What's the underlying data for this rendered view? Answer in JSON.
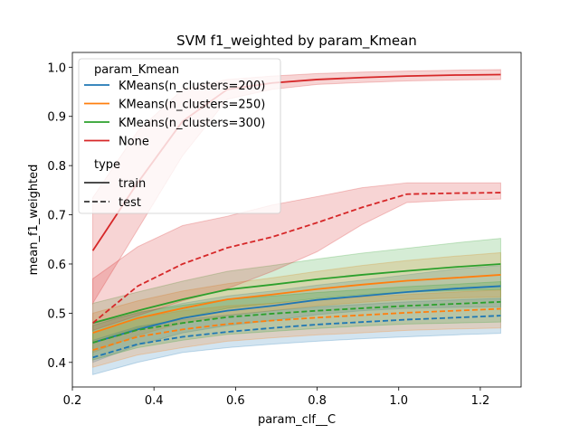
{
  "chart_data": {
    "type": "line",
    "title": "SVM f1_weighted by param_Kmean",
    "xlabel": "param_clf__C",
    "ylabel": "mean_f1_weighted",
    "xlim": [
      0.2,
      1.3
    ],
    "ylim": [
      0.35,
      1.03
    ],
    "xticks": [
      "0.2",
      "0.4",
      "0.6",
      "0.8",
      "1.0",
      "1.2"
    ],
    "yticks": [
      "0.4",
      "0.5",
      "0.6",
      "0.7",
      "0.8",
      "0.9",
      "1.0"
    ],
    "grid": false,
    "legend": {
      "placement": "top-left",
      "hue_title": "param_Kmean",
      "style_title": "type",
      "hue_entries": [
        {
          "label": "KMeans(n_clusters=200)",
          "color": "#1f77b4"
        },
        {
          "label": "KMeans(n_clusters=250)",
          "color": "#ff7f0e"
        },
        {
          "label": "KMeans(n_clusters=300)",
          "color": "#2ca02c"
        },
        {
          "label": "None",
          "color": "#d62728"
        }
      ],
      "style_entries": [
        {
          "label": "train",
          "dash": "solid"
        },
        {
          "label": "test",
          "dash": "dashed"
        }
      ]
    },
    "x": [
      0.25,
      0.36,
      0.47,
      0.58,
      0.69,
      0.8,
      0.91,
      1.02,
      1.14,
      1.25
    ],
    "series": [
      {
        "name": "KMeans(n_clusters=200)",
        "type": "train",
        "color": "#1f77b4",
        "values": [
          0.44,
          0.467,
          0.49,
          0.505,
          0.515,
          0.527,
          0.535,
          0.543,
          0.55,
          0.555
        ],
        "lower": [
          0.4,
          0.435,
          0.46,
          0.475,
          0.485,
          0.497,
          0.505,
          0.51,
          0.512,
          0.513
        ],
        "upper": [
          0.48,
          0.5,
          0.52,
          0.535,
          0.545,
          0.557,
          0.567,
          0.578,
          0.59,
          0.597
        ]
      },
      {
        "name": "KMeans(n_clusters=250)",
        "type": "train",
        "color": "#ff7f0e",
        "values": [
          0.46,
          0.49,
          0.51,
          0.528,
          0.538,
          0.549,
          0.558,
          0.566,
          0.572,
          0.578
        ],
        "lower": [
          0.42,
          0.455,
          0.48,
          0.495,
          0.505,
          0.515,
          0.522,
          0.528,
          0.531,
          0.533
        ],
        "upper": [
          0.5,
          0.525,
          0.545,
          0.56,
          0.572,
          0.585,
          0.597,
          0.607,
          0.616,
          0.623
        ]
      },
      {
        "name": "KMeans(n_clusters=300)",
        "type": "train",
        "color": "#2ca02c",
        "values": [
          0.48,
          0.505,
          0.528,
          0.548,
          0.558,
          0.569,
          0.578,
          0.586,
          0.594,
          0.6
        ],
        "lower": [
          0.44,
          0.47,
          0.49,
          0.51,
          0.52,
          0.53,
          0.538,
          0.543,
          0.546,
          0.548
        ],
        "upper": [
          0.52,
          0.543,
          0.565,
          0.585,
          0.597,
          0.61,
          0.622,
          0.632,
          0.643,
          0.652
        ]
      },
      {
        "name": "None",
        "type": "train",
        "color": "#d62728",
        "values": [
          0.627,
          0.765,
          0.89,
          0.955,
          0.968,
          0.975,
          0.979,
          0.982,
          0.984,
          0.985
        ],
        "lower": [
          0.52,
          0.67,
          0.82,
          0.935,
          0.955,
          0.965,
          0.969,
          0.972,
          0.974,
          0.975
        ],
        "upper": [
          0.735,
          0.87,
          0.955,
          0.975,
          0.982,
          0.987,
          0.99,
          0.992,
          0.994,
          0.995
        ]
      },
      {
        "name": "KMeans(n_clusters=200)",
        "type": "test",
        "color": "#1f77b4",
        "values": [
          0.41,
          0.437,
          0.452,
          0.462,
          0.47,
          0.477,
          0.482,
          0.487,
          0.491,
          0.495
        ],
        "lower": [
          0.375,
          0.4,
          0.42,
          0.43,
          0.437,
          0.443,
          0.448,
          0.452,
          0.456,
          0.459
        ],
        "upper": [
          0.445,
          0.473,
          0.487,
          0.496,
          0.505,
          0.513,
          0.518,
          0.523,
          0.527,
          0.53
        ]
      },
      {
        "name": "KMeans(n_clusters=250)",
        "type": "test",
        "color": "#ff7f0e",
        "values": [
          0.425,
          0.452,
          0.467,
          0.478,
          0.485,
          0.491,
          0.496,
          0.501,
          0.505,
          0.509
        ],
        "lower": [
          0.39,
          0.415,
          0.43,
          0.443,
          0.45,
          0.456,
          0.46,
          0.465,
          0.468,
          0.47
        ],
        "upper": [
          0.46,
          0.49,
          0.505,
          0.515,
          0.52,
          0.527,
          0.533,
          0.538,
          0.543,
          0.547
        ]
      },
      {
        "name": "KMeans(n_clusters=300)",
        "type": "test",
        "color": "#2ca02c",
        "values": [
          0.44,
          0.466,
          0.48,
          0.492,
          0.499,
          0.505,
          0.51,
          0.515,
          0.519,
          0.523
        ],
        "lower": [
          0.405,
          0.43,
          0.445,
          0.457,
          0.463,
          0.469,
          0.474,
          0.478,
          0.48,
          0.482
        ],
        "upper": [
          0.475,
          0.502,
          0.516,
          0.528,
          0.535,
          0.542,
          0.548,
          0.554,
          0.559,
          0.564
        ]
      },
      {
        "name": "None",
        "type": "test",
        "color": "#d62728",
        "values": [
          0.48,
          0.555,
          0.6,
          0.633,
          0.655,
          0.684,
          0.715,
          0.742,
          0.744,
          0.745
        ],
        "lower": [
          0.465,
          0.495,
          0.525,
          0.55,
          0.585,
          0.625,
          0.68,
          0.725,
          0.73,
          0.732
        ],
        "upper": [
          0.57,
          0.635,
          0.678,
          0.697,
          0.72,
          0.737,
          0.755,
          0.765,
          0.765,
          0.765
        ]
      }
    ]
  }
}
